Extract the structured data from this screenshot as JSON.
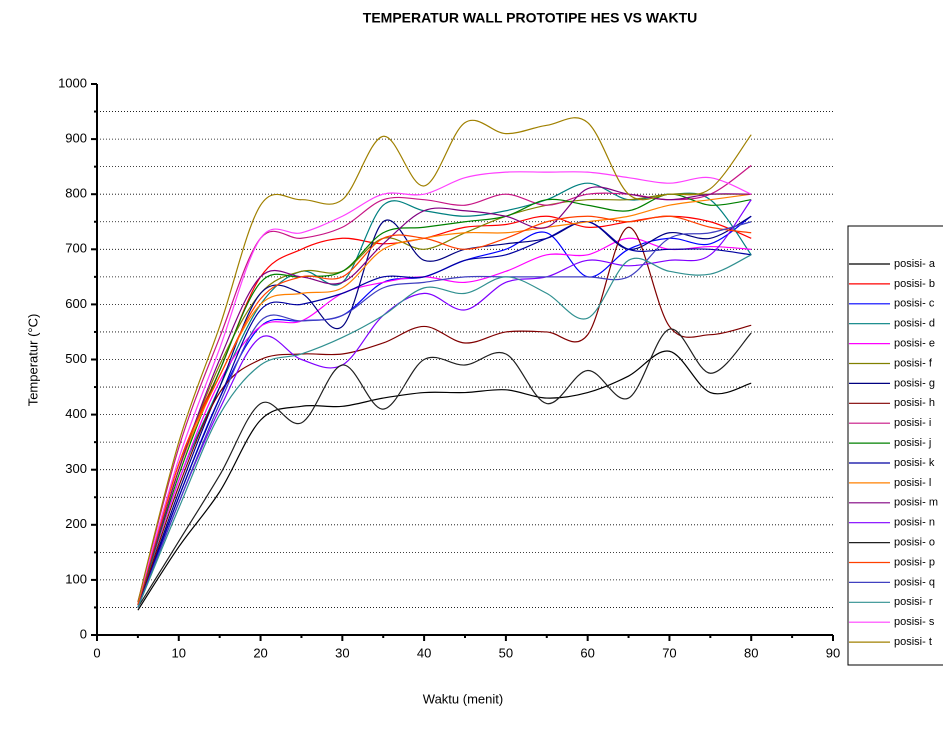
{
  "chart_data": {
    "type": "line",
    "title": "TEMPERATUR WALL PROTOTIPE HES VS WAKTU",
    "xlabel": "Waktu (menit)",
    "ylabel": "Temperatur (°C)",
    "x": [
      5,
      10,
      15,
      20,
      25,
      30,
      35,
      40,
      45,
      50,
      55,
      60,
      65,
      70,
      75,
      80
    ],
    "xlim": [
      0,
      90
    ],
    "xticks": [
      0,
      10,
      20,
      30,
      40,
      50,
      60,
      70,
      80,
      90
    ],
    "xminorticks": [
      5,
      15,
      25,
      35,
      45,
      55,
      65,
      75,
      85
    ],
    "ylim": [
      0,
      1000
    ],
    "yticks": [
      0,
      100,
      200,
      300,
      400,
      500,
      600,
      700,
      800,
      900,
      1000
    ],
    "yminorticks": [
      50,
      150,
      250,
      350,
      450,
      550,
      650,
      750,
      850,
      950
    ],
    "grid": true,
    "legend": "right",
    "series": [
      {
        "name": "posisi- a",
        "color": "#000000",
        "values": [
          45,
          160,
          260,
          390,
          415,
          415,
          430,
          440,
          440,
          445,
          430,
          440,
          470,
          515,
          440,
          457
        ]
      },
      {
        "name": "posisi- b",
        "color": "#ff0000",
        "values": [
          55,
          310,
          480,
          650,
          700,
          720,
          710,
          720,
          740,
          745,
          760,
          740,
          750,
          760,
          750,
          720
        ]
      },
      {
        "name": "posisi- c",
        "color": "#0000ff",
        "values": [
          50,
          250,
          430,
          560,
          570,
          580,
          640,
          650,
          680,
          700,
          730,
          650,
          700,
          720,
          710,
          760
        ]
      },
      {
        "name": "posisi- d",
        "color": "#008080",
        "values": [
          55,
          280,
          450,
          600,
          660,
          640,
          780,
          770,
          760,
          770,
          790,
          820,
          790,
          800,
          790,
          690
        ]
      },
      {
        "name": "posisi- e",
        "color": "#ff00ff",
        "values": [
          60,
          280,
          460,
          560,
          570,
          620,
          640,
          650,
          640,
          660,
          690,
          690,
          720,
          700,
          705,
          700
        ]
      },
      {
        "name": "posisi- f",
        "color": "#808000",
        "values": [
          55,
          300,
          490,
          620,
          660,
          660,
          720,
          700,
          730,
          760,
          780,
          790,
          790,
          800,
          800,
          800
        ]
      },
      {
        "name": "posisi- g",
        "color": "#000080",
        "values": [
          50,
          260,
          450,
          620,
          620,
          560,
          750,
          680,
          700,
          710,
          720,
          750,
          700,
          730,
          720,
          760
        ]
      },
      {
        "name": "posisi- h",
        "color": "#800000",
        "values": [
          50,
          270,
          440,
          500,
          510,
          510,
          530,
          560,
          530,
          550,
          550,
          545,
          740,
          560,
          545,
          562
        ]
      },
      {
        "name": "posisi- i",
        "color": "#c71585",
        "values": [
          60,
          340,
          540,
          720,
          720,
          740,
          790,
          790,
          780,
          800,
          780,
          800,
          800,
          790,
          800,
          852
        ]
      },
      {
        "name": "posisi- j",
        "color": "#008000",
        "values": [
          55,
          290,
          480,
          640,
          650,
          660,
          730,
          740,
          750,
          760,
          790,
          780,
          770,
          800,
          780,
          790
        ]
      },
      {
        "name": "posisi- k",
        "color": "#0000a0",
        "values": [
          50,
          250,
          430,
          590,
          600,
          620,
          650,
          650,
          680,
          690,
          720,
          750,
          700,
          700,
          700,
          690
        ]
      },
      {
        "name": "posisi- l",
        "color": "#ff8000",
        "values": [
          55,
          300,
          470,
          600,
          620,
          630,
          700,
          720,
          730,
          730,
          740,
          750,
          760,
          780,
          790,
          800
        ]
      },
      {
        "name": "posisi- m",
        "color": "#800080",
        "values": [
          55,
          300,
          500,
          650,
          650,
          640,
          710,
          770,
          770,
          760,
          740,
          810,
          800,
          790,
          800,
          800
        ]
      },
      {
        "name": "posisi- n",
        "color": "#8000ff",
        "values": [
          50,
          240,
          410,
          540,
          500,
          490,
          580,
          620,
          590,
          640,
          650,
          680,
          670,
          680,
          690,
          790
        ]
      },
      {
        "name": "posisi- o",
        "color": "#202020",
        "values": [
          50,
          170,
          290,
          420,
          385,
          490,
          410,
          500,
          490,
          510,
          420,
          480,
          430,
          555,
          475,
          548
        ]
      },
      {
        "name": "posisi- p",
        "color": "#ff4000",
        "values": [
          55,
          310,
          470,
          610,
          650,
          650,
          720,
          720,
          700,
          720,
          750,
          760,
          750,
          760,
          740,
          730
        ]
      },
      {
        "name": "posisi- q",
        "color": "#4040c0",
        "values": [
          50,
          240,
          420,
          570,
          570,
          580,
          630,
          640,
          650,
          650,
          650,
          650,
          650,
          720,
          730,
          750
        ]
      },
      {
        "name": "posisi- r",
        "color": "#309090",
        "values": [
          50,
          230,
          400,
          490,
          510,
          540,
          580,
          630,
          620,
          650,
          620,
          575,
          680,
          660,
          655,
          690
        ]
      },
      {
        "name": "posisi- s",
        "color": "#ff40ff",
        "values": [
          60,
          320,
          520,
          720,
          730,
          760,
          800,
          800,
          830,
          840,
          840,
          840,
          830,
          820,
          830,
          800
        ]
      },
      {
        "name": "posisi- t",
        "color": "#a08000",
        "values": [
          60,
          350,
          560,
          780,
          790,
          790,
          905,
          815,
          930,
          910,
          925,
          930,
          800,
          800,
          810,
          908
        ]
      }
    ]
  }
}
